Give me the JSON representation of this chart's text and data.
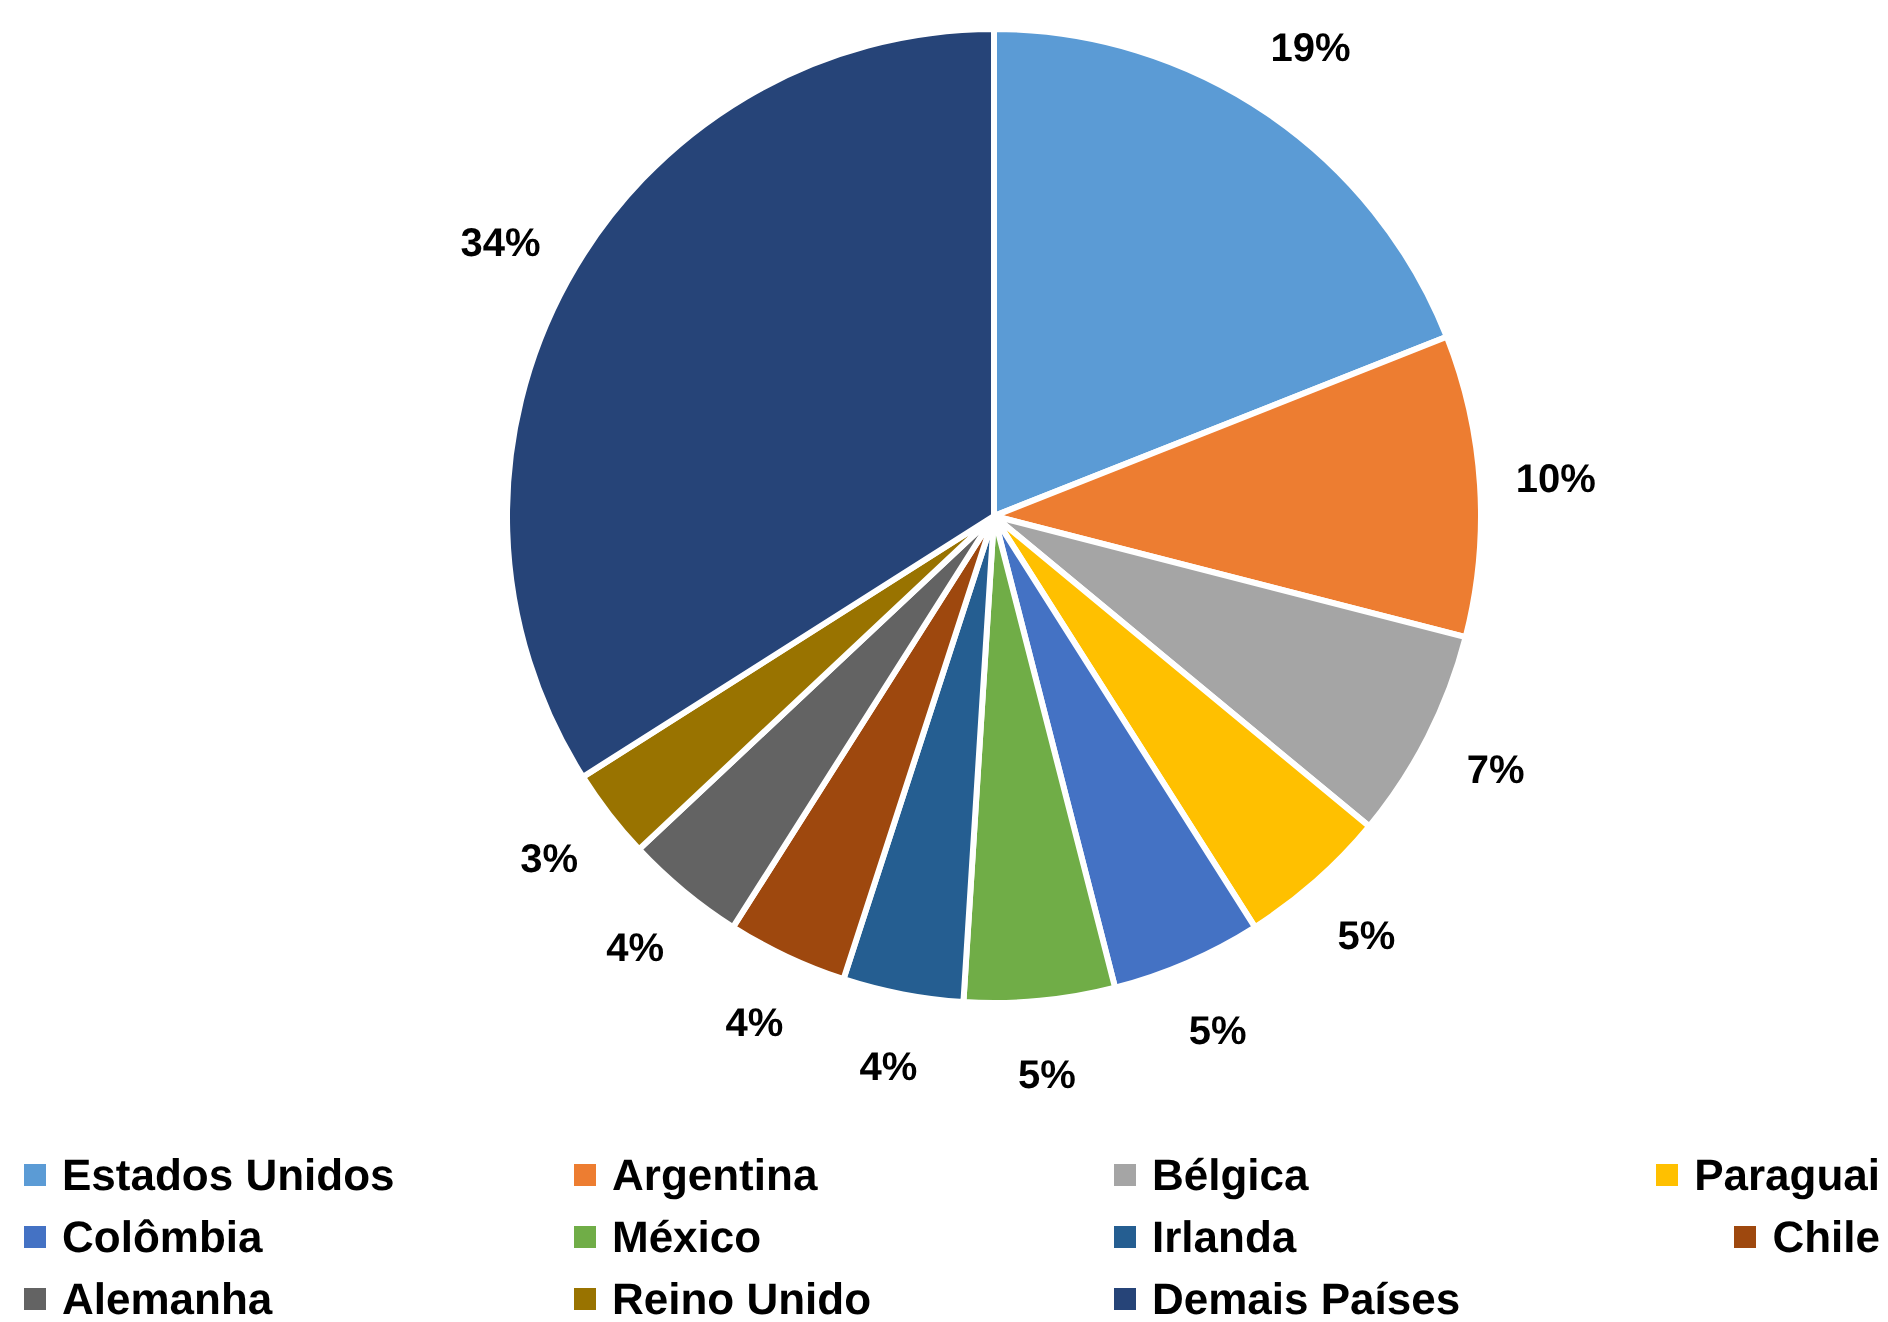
{
  "chart_data": {
    "type": "pie",
    "categories": [
      "Estados Unidos",
      "Argentina",
      "Bélgica",
      "Paraguai",
      "Colômbia",
      "México",
      "Irlanda",
      "Chile",
      "Alemanha",
      "Reino Unido",
      "Demais Países"
    ],
    "values": [
      19,
      10,
      7,
      5,
      5,
      5,
      4,
      4,
      4,
      3,
      34
    ],
    "colors": [
      "#5b9bd5",
      "#ed7d31",
      "#a5a5a5",
      "#ffc000",
      "#4472c4",
      "#70ad47",
      "#255e91",
      "#9e480e",
      "#636363",
      "#997300",
      "#264478"
    ],
    "value_labels": [
      "19%",
      "10%",
      "7%",
      "5%",
      "5%",
      "5%",
      "4%",
      "4%",
      "4%",
      "3%",
      "34%"
    ],
    "legend": "bottom"
  }
}
